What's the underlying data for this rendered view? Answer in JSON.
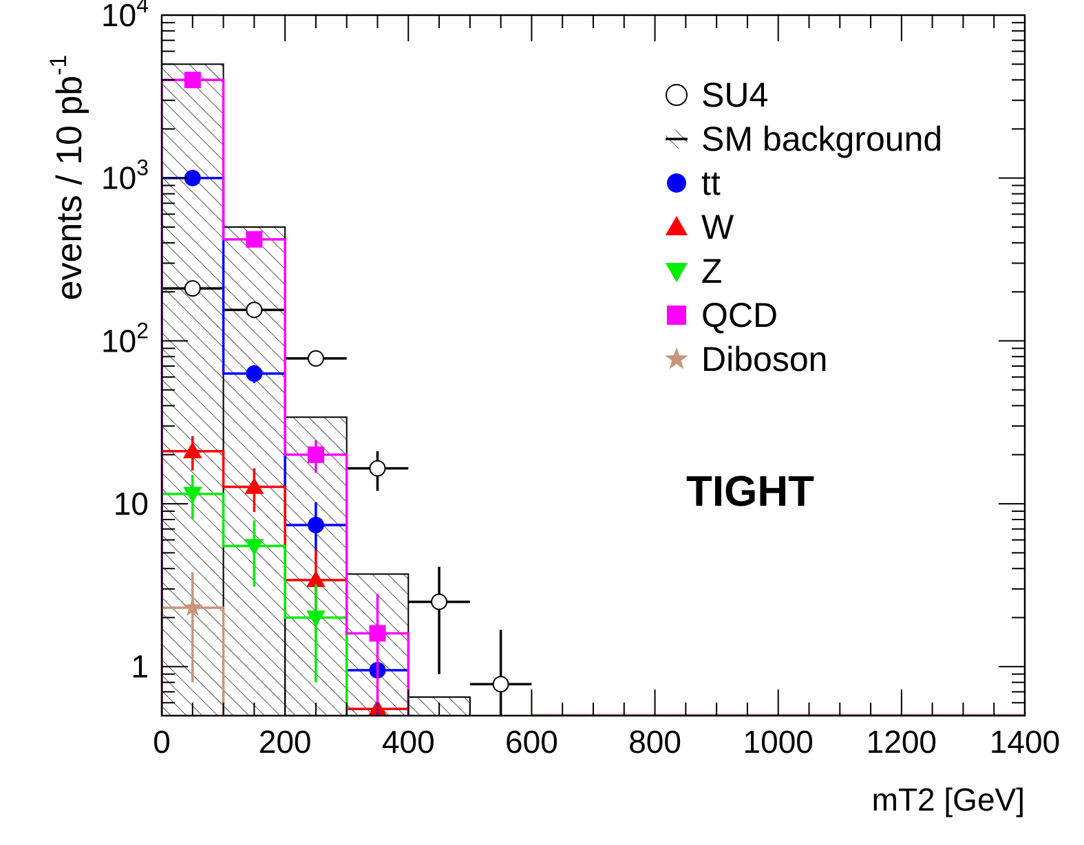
{
  "chart_data": {
    "type": "histogram",
    "xlabel": "mT2 [GeV]",
    "ylabel_main": "events / 10 pb",
    "ylabel_sup": "-1",
    "xlim": [
      0,
      1400
    ],
    "ylim": [
      0.5,
      10000
    ],
    "yscale": "log",
    "bin_width": 100,
    "x_ticks": [
      {
        "value": 0,
        "label": "0"
      },
      {
        "value": 200,
        "label": "200"
      },
      {
        "value": 400,
        "label": "400"
      },
      {
        "value": 600,
        "label": "600"
      },
      {
        "value": 800,
        "label": "800"
      },
      {
        "value": 1000,
        "label": "1000"
      },
      {
        "value": 1200,
        "label": "1200"
      },
      {
        "value": 1400,
        "label": "1400"
      }
    ],
    "y_ticks": [
      {
        "value": 1,
        "base": "1",
        "exp": ""
      },
      {
        "value": 10,
        "base": "10",
        "exp": ""
      },
      {
        "value": 100,
        "base": "10",
        "exp": "2"
      },
      {
        "value": 1000,
        "base": "10",
        "exp": "3"
      },
      {
        "value": 10000,
        "base": "10",
        "exp": "4"
      }
    ],
    "annotation": "TIGHT",
    "sm_background": {
      "name": "SM background",
      "bins": [
        [
          0,
          100,
          5000
        ],
        [
          100,
          200,
          500
        ],
        [
          200,
          300,
          34
        ],
        [
          300,
          400,
          3.7
        ],
        [
          400,
          500,
          0.65
        ]
      ]
    },
    "series": [
      {
        "key": "su4",
        "name": "SU4",
        "color": "#000000",
        "marker": "open-circle",
        "line": false,
        "points": [
          [
            50,
            210,
            0
          ],
          [
            150,
            155,
            0
          ],
          [
            250,
            78,
            0
          ],
          [
            350,
            16.5,
            4.5
          ],
          [
            450,
            2.5,
            1.6
          ],
          [
            550,
            0.78,
            0.9
          ]
        ]
      },
      {
        "key": "tt",
        "name": "tt",
        "color": "#0000ff",
        "marker": "circle",
        "line": true,
        "points": [
          [
            50,
            1000,
            0
          ],
          [
            150,
            63,
            8
          ],
          [
            250,
            7.4,
            2.8
          ],
          [
            350,
            0.95,
            0
          ]
        ]
      },
      {
        "key": "w",
        "name": "W",
        "color": "#ff0000",
        "marker": "triangle-up",
        "line": true,
        "points": [
          [
            50,
            21,
            5
          ],
          [
            150,
            12.7,
            3.8
          ],
          [
            250,
            3.4,
            1.8
          ],
          [
            350,
            0.55,
            0
          ]
        ]
      },
      {
        "key": "z",
        "name": "Z",
        "color": "#00ee00",
        "marker": "triangle-down",
        "line": true,
        "points": [
          [
            50,
            11.5,
            3.5
          ],
          [
            150,
            5.5,
            2.4
          ],
          [
            250,
            2.0,
            1.2
          ]
        ]
      },
      {
        "key": "qcd",
        "name": "QCD",
        "color": "#ff00ff",
        "marker": "square",
        "line": true,
        "points": [
          [
            50,
            4000,
            0
          ],
          [
            150,
            420,
            0
          ],
          [
            250,
            20,
            4.5
          ],
          [
            350,
            1.6,
            1.2
          ]
        ]
      },
      {
        "key": "diboson",
        "name": "Diboson",
        "color": "#c8967a",
        "marker": "star",
        "line": true,
        "points": [
          [
            50,
            2.3,
            1.5
          ]
        ]
      }
    ]
  }
}
